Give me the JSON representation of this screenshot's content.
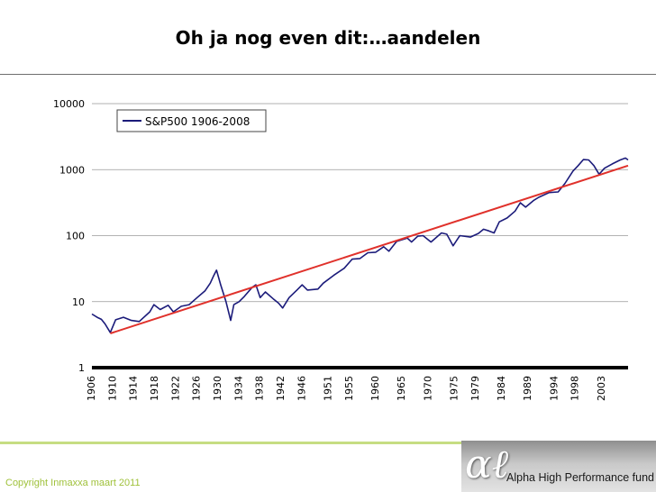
{
  "slide": {
    "title": "Oh ja nog even dit:…aandelen"
  },
  "footer": {
    "copyright": "Copyright Inmaxxa maart 2011",
    "logo_mark": "αℓ",
    "logo_text": "Alpha High Performance fund"
  },
  "colors": {
    "series": "#1b1b7a",
    "trend": "#e0312b",
    "baseline": "#000000",
    "grid": "#999999",
    "accent": "#9fc13a"
  },
  "chart_data": {
    "type": "line",
    "yscale": "log",
    "ylim": [
      1,
      10000
    ],
    "xlim": [
      1906,
      2008
    ],
    "legend": {
      "position": "top-left",
      "entries": [
        "S&P500 1906-2008"
      ]
    },
    "grid": "horizontal",
    "y_ticks": [
      "1",
      "10",
      "100",
      "1000",
      "10000"
    ],
    "x_ticks": [
      "1906",
      "1910",
      "1914",
      "1918",
      "1922",
      "1926",
      "1930",
      "1934",
      "1938",
      "1942",
      "1946",
      "1951",
      "1955",
      "1960",
      "1965",
      "1970",
      "1975",
      "1979",
      "1984",
      "1989",
      "1994",
      "1998",
      "2003"
    ],
    "series": [
      {
        "name": "S&P500 1906-2008",
        "x": [
          1906,
          1907,
          1907.8,
          1908.5,
          1909.5,
          1910.5,
          1912,
          1913.5,
          1915,
          1917,
          1917.8,
          1919,
          1920.5,
          1921.5,
          1923,
          1924.5,
          1926,
          1927.5,
          1928.5,
          1929.2,
          1929.7,
          1930.5,
          1931.5,
          1932.4,
          1933,
          1934,
          1935,
          1936.5,
          1937.2,
          1938,
          1939,
          1940.5,
          1941.5,
          1942.3,
          1943.5,
          1945,
          1946,
          1947,
          1949,
          1950,
          1952,
          1954,
          1955.5,
          1957,
          1958.5,
          1960,
          1961.5,
          1962.5,
          1964,
          1966,
          1966.8,
          1968,
          1969,
          1970.5,
          1972.5,
          1973.5,
          1974.7,
          1976,
          1978,
          1979.5,
          1980.5,
          1981.5,
          1982.5,
          1983.5,
          1985,
          1986.5,
          1987.5,
          1988.5,
          1990,
          1991,
          1993,
          1994.7,
          1996,
          1997.5,
          1998.5,
          1999.5,
          2000.5,
          2001.5,
          2002.5,
          2003.5,
          2005,
          2006.5,
          2007.5,
          2008
        ],
        "values": [
          6.5,
          5.8,
          5.4,
          4.6,
          3.4,
          5.3,
          5.8,
          5.2,
          5.0,
          7.0,
          9.0,
          7.6,
          8.8,
          7.0,
          8.5,
          9.0,
          11.5,
          14.5,
          19.0,
          25.0,
          30.0,
          18.0,
          10.0,
          5.2,
          9.0,
          10.0,
          12.0,
          16.5,
          18.0,
          11.5,
          14.0,
          11.0,
          9.5,
          8.0,
          11.5,
          15.0,
          18.0,
          15.0,
          15.5,
          19.0,
          25.0,
          32.0,
          44.0,
          45.0,
          55.0,
          56.0,
          68.0,
          58.0,
          82.0,
          92.0,
          80.0,
          98.0,
          100.0,
          80.0,
          110.0,
          105.0,
          70.0,
          100.0,
          95.0,
          108.0,
          125.0,
          118.0,
          110.0,
          162.0,
          185.0,
          235.0,
          315.0,
          270.0,
          340.0,
          380.0,
          450.0,
          460.0,
          620.0,
          950.0,
          1150.0,
          1420.0,
          1400.0,
          1150.0,
          850.0,
          1050.0,
          1220.0,
          1400.0,
          1500.0,
          1400.0
        ]
      },
      {
        "name": "",
        "x": [
          1909.5,
          2008
        ],
        "values": [
          3.3,
          1150.0
        ]
      }
    ]
  }
}
